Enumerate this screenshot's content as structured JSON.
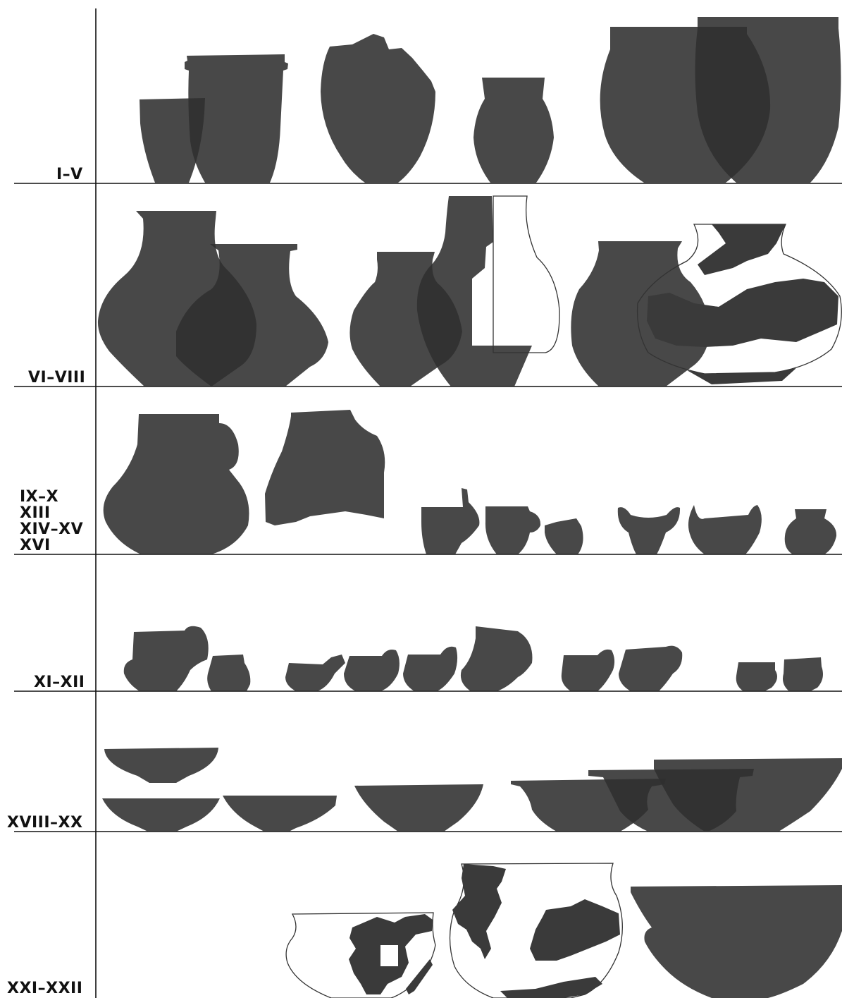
{
  "rows": [
    {
      "labels": [
        "I–V"
      ]
    },
    {
      "labels": [
        "VI–VIII"
      ]
    },
    {
      "labels": [
        "IX–X",
        "XIII",
        "XIV–XV",
        "XVI"
      ]
    },
    {
      "labels": [
        "XI–XII"
      ]
    },
    {
      "labels": [
        "XVIII–XX"
      ]
    },
    {
      "labels": [
        "XXI–XXII"
      ]
    }
  ],
  "colors": {
    "vessel_fill": "#2f2f2f",
    "overlap_dark": "#111111",
    "outline": "#333333",
    "rule": "#111111",
    "background": "#ffffff"
  }
}
